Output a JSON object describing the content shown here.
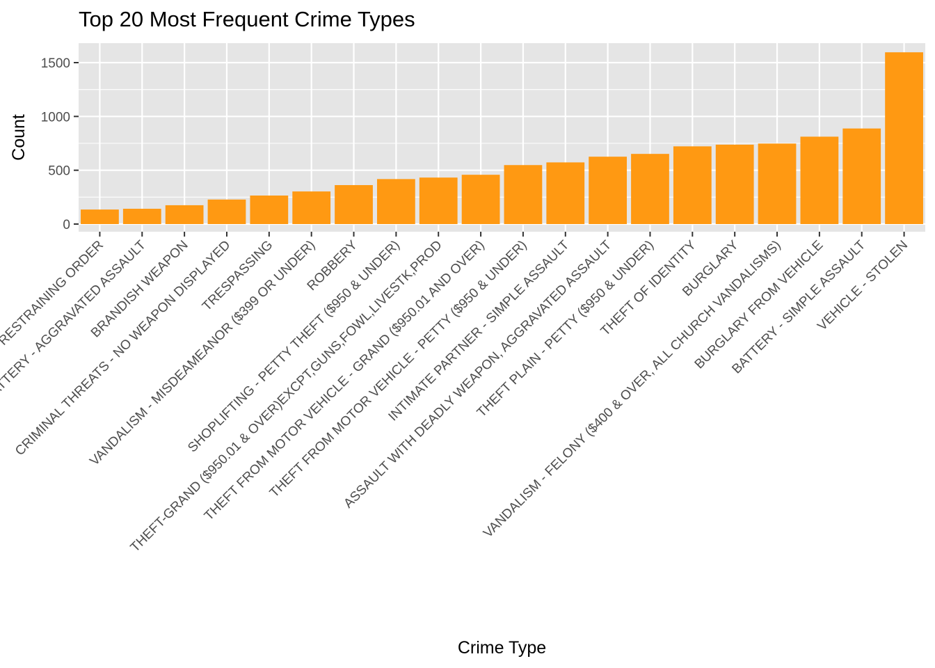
{
  "chart_data": {
    "type": "bar",
    "title": "Top 20 Most Frequent Crime Types",
    "xlabel": "Crime Type",
    "ylabel": "Count",
    "ylim": [
      0,
      1650
    ],
    "yticks": [
      0,
      500,
      1000,
      1500
    ],
    "grid": true,
    "legend": "none",
    "bar_color": "#FF9912",
    "panel_color": "#E5E5E5",
    "categories": [
      "VIOLATION OF RESTRAINING ORDER",
      "BATTERY - AGGRAVATED ASSAULT",
      "BRANDISH WEAPON",
      "CRIMINAL THREATS - NO WEAPON DISPLAYED",
      "TRESPASSING",
      "VANDALISM - MISDEAMEANOR ($399 OR UNDER)",
      "ROBBERY",
      "SHOPLIFTING - PETTY THEFT ($950 & UNDER)",
      "THEFT-GRAND ($950.01 & OVER)EXCPT,GUNS,FOWL,LIVESTK,PROD",
      "THEFT FROM MOTOR VEHICLE - GRAND ($950.01 AND OVER)",
      "THEFT FROM MOTOR VEHICLE - PETTY ($950 & UNDER)",
      "INTIMATE PARTNER - SIMPLE ASSAULT",
      "ASSAULT WITH DEADLY WEAPON, AGGRAVATED ASSAULT",
      "THEFT PLAIN - PETTY ($950 & UNDER)",
      "THEFT OF IDENTITY",
      "BURGLARY",
      "VANDALISM - FELONY ($400 & OVER, ALL CHURCH VANDALISMS)",
      "BURGLARY FROM VEHICLE",
      "BATTERY - SIMPLE ASSAULT",
      "VEHICLE - STOLEN"
    ],
    "values": [
      135,
      142,
      175,
      228,
      265,
      303,
      362,
      418,
      432,
      458,
      548,
      573,
      626,
      652,
      722,
      738,
      748,
      812,
      888,
      1596
    ]
  }
}
